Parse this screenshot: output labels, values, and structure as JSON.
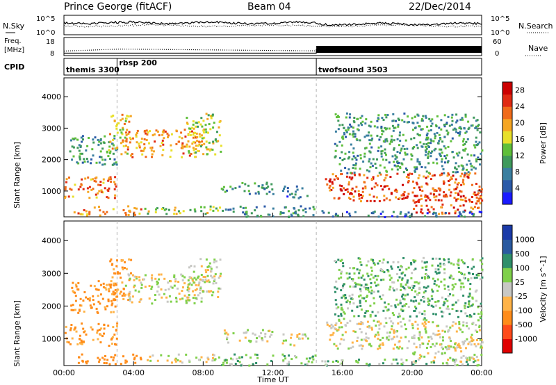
{
  "header": {
    "station": "Prince George (fitACF)",
    "beam": "Beam 04",
    "date": "22/Dec/2014"
  },
  "strip_labels": {
    "nsky": "N.Sky",
    "nsearch": "N.Search",
    "freq_line1": "Freq.",
    "freq_line2": "[MHz]",
    "nave": "Nave",
    "cpid": "CPID",
    "noise_ticks_left": [
      "10^5",
      "10^0"
    ],
    "noise_ticks_right": [
      "10^5",
      "10^0"
    ],
    "freq_ticks_left": [
      "18",
      "8"
    ],
    "freq_ticks_right": [
      "60",
      "0"
    ]
  },
  "chart_data": [
    {
      "type": "line",
      "name": "noise",
      "series": [
        {
          "name": "N.Sky",
          "style": "solid"
        },
        {
          "name": "N.Search",
          "style": "dotted"
        }
      ],
      "x": [
        "00:00",
        "04:00",
        "08:00",
        "12:00",
        "16:00",
        "20:00",
        "00:00"
      ],
      "note_levels": {
        "N.Sky": [
          1000.0,
          1000.0,
          1000.0,
          1000.0,
          1000.0,
          1000.0,
          1000.0
        ]
      },
      "ylim": [
        "10^0",
        "10^5"
      ],
      "ylog": true
    },
    {
      "type": "line",
      "name": "frequency-nave",
      "series": [
        {
          "name": "Freq",
          "unit": "MHz",
          "x_hours": [
            0,
            3.2,
            14.5,
            24
          ],
          "values": [
            10.5,
            11.6,
            10.6,
            10.6
          ],
          "style": "dotted"
        },
        {
          "name": "Nave",
          "x_hours": [
            0,
            14.5,
            14.5,
            24
          ],
          "values": [
            8,
            8,
            20,
            20
          ],
          "style": "solid"
        }
      ],
      "ylim_left": [
        8,
        18
      ],
      "ylim_right": [
        0,
        60
      ]
    },
    {
      "type": "table",
      "name": "cpid",
      "segments": [
        {
          "start_hours": 0.0,
          "label": "themis 3300"
        },
        {
          "start_hours": 3.05,
          "label": "rbsp 200"
        },
        {
          "start_hours": 14.5,
          "label": "twofsound 3503"
        }
      ]
    },
    {
      "type": "heatmap",
      "name": "power",
      "xlabel": "",
      "ylabel": "Slant Range [km]",
      "xlim_hours": [
        0,
        24
      ],
      "ylim": [
        180,
        4600
      ],
      "y_ticks": [
        1000,
        2000,
        3000,
        4000
      ],
      "colorbar": {
        "label": "Power [dB]",
        "ticks": [
          4,
          8,
          12,
          16,
          20,
          24,
          28
        ],
        "range": [
          0,
          30
        ]
      },
      "regions": [
        {
          "t": [
            0.0,
            3.0
          ],
          "r": [
            800,
            1500
          ],
          "level": 22
        },
        {
          "t": [
            0.3,
            3.0
          ],
          "r": [
            1800,
            2800
          ],
          "level": 10
        },
        {
          "t": [
            0.5,
            4.5
          ],
          "r": [
            250,
            550
          ],
          "level": 20
        },
        {
          "t": [
            2.5,
            3.8
          ],
          "r": [
            2200,
            3500
          ],
          "level": 18
        },
        {
          "t": [
            3.5,
            8.0
          ],
          "r": [
            2100,
            3000
          ],
          "level": 20
        },
        {
          "t": [
            7.0,
            9.0
          ],
          "r": [
            2200,
            3500
          ],
          "level": 16
        },
        {
          "t": [
            4.5,
            9.0
          ],
          "r": [
            300,
            550
          ],
          "level": 14
        },
        {
          "t": [
            9.0,
            12.0
          ],
          "r": [
            900,
            1300
          ],
          "level": 9
        },
        {
          "t": [
            12.5,
            14.0
          ],
          "r": [
            800,
            1200
          ],
          "level": 7
        },
        {
          "t": [
            9.0,
            14.5
          ],
          "r": [
            200,
            550
          ],
          "level": 8
        },
        {
          "t": [
            15.0,
            24.0
          ],
          "r": [
            700,
            1600
          ],
          "level": 24
        },
        {
          "t": [
            15.5,
            24.0
          ],
          "r": [
            1600,
            3500
          ],
          "level": 10
        },
        {
          "t": [
            20.0,
            24.0
          ],
          "r": [
            300,
            900
          ],
          "level": 24
        },
        {
          "t": [
            14.5,
            24.0
          ],
          "r": [
            200,
            400
          ],
          "level": 6
        }
      ]
    },
    {
      "type": "heatmap",
      "name": "velocity",
      "xlabel": "Time UT",
      "ylabel": "Slant Range [km]",
      "xlim_hours": [
        0,
        24
      ],
      "ylim": [
        180,
        4600
      ],
      "y_ticks": [
        1000,
        2000,
        3000,
        4000
      ],
      "x_ticks": [
        "00:00",
        "04:00",
        "08:00",
        "12:00",
        "16:00",
        "20:00",
        "00:00"
      ],
      "colorbar": {
        "label": "Velocity [m s^-1]",
        "ticks": [
          -1000,
          -500,
          -100,
          -25,
          25,
          100,
          500,
          1000
        ]
      },
      "regions": [
        {
          "t": [
            0.0,
            3.0
          ],
          "r": [
            800,
            1500
          ],
          "value": -120
        },
        {
          "t": [
            0.3,
            3.0
          ],
          "r": [
            1800,
            2800
          ],
          "value": -150
        },
        {
          "t": [
            0.5,
            4.5
          ],
          "r": [
            250,
            550
          ],
          "value": -200
        },
        {
          "t": [
            2.5,
            3.8
          ],
          "r": [
            2200,
            3500
          ],
          "value": -120
        },
        {
          "t": [
            3.5,
            8.0
          ],
          "r": [
            2100,
            3000
          ],
          "value": 0
        },
        {
          "t": [
            7.0,
            9.0
          ],
          "r": [
            2200,
            3500
          ],
          "value": 0
        },
        {
          "t": [
            4.5,
            9.0
          ],
          "r": [
            300,
            550
          ],
          "value": 0
        },
        {
          "t": [
            9.0,
            12.0
          ],
          "r": [
            900,
            1300
          ],
          "value": 0
        },
        {
          "t": [
            12.5,
            14.0
          ],
          "r": [
            800,
            1200
          ],
          "value": 0
        },
        {
          "t": [
            9.0,
            14.5
          ],
          "r": [
            200,
            550
          ],
          "value": 80
        },
        {
          "t": [
            15.0,
            24.0
          ],
          "r": [
            700,
            1600
          ],
          "value": 0
        },
        {
          "t": [
            15.5,
            24.0
          ],
          "r": [
            1600,
            3500
          ],
          "value": 80
        },
        {
          "t": [
            20.0,
            24.0
          ],
          "r": [
            300,
            900
          ],
          "value": 0
        },
        {
          "t": [
            14.5,
            24.0
          ],
          "r": [
            200,
            400
          ],
          "value": 60
        }
      ]
    }
  ],
  "colors": {
    "power_scale": [
      "#1a1aff",
      "#2b5aa8",
      "#3a7fa0",
      "#3f9a5c",
      "#5fbf3a",
      "#e8e02a",
      "#f5a623",
      "#f06b1a",
      "#e02a12",
      "#cc0000"
    ],
    "velocity_scale": [
      "#e00000",
      "#ff4a1a",
      "#ff8c1a",
      "#ffb347",
      "#c8c8c4",
      "#7fd04a",
      "#2f8f6a",
      "#2a5aa0",
      "#1a3aa8"
    ],
    "cpid_divider": "#000000",
    "dashed_marker": "#b0b0b0"
  }
}
